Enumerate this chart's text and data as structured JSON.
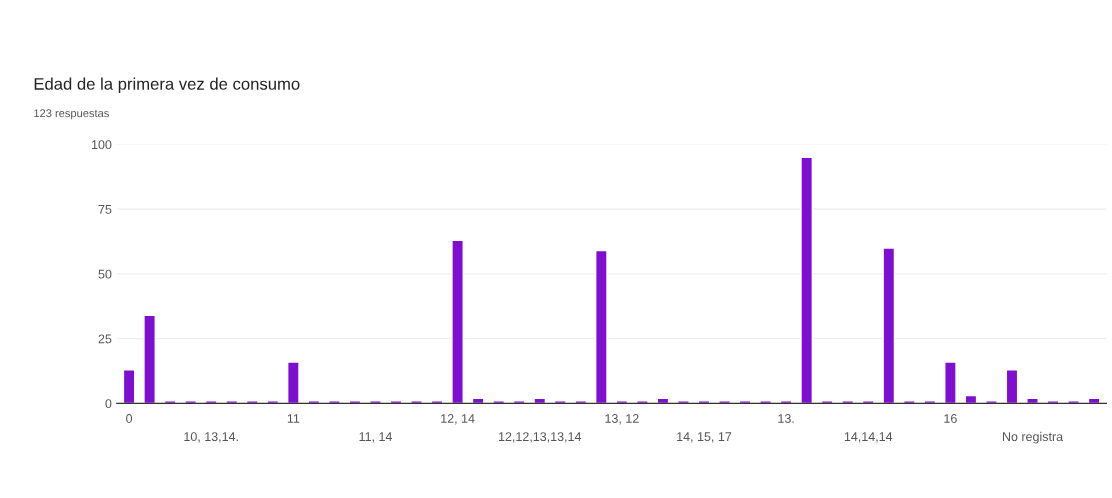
{
  "chart_data": {
    "type": "bar",
    "title": "Edad de la primera vez de consumo",
    "subtitle": "123 respuestas",
    "categories": [
      "0",
      null,
      null,
      null,
      "10, 13,14.",
      null,
      null,
      null,
      "11",
      null,
      null,
      null,
      "11, 14",
      null,
      null,
      null,
      "12, 14",
      null,
      null,
      null,
      "12,12,13,13,14",
      null,
      null,
      null,
      "13, 12",
      null,
      null,
      null,
      "14, 15, 17",
      null,
      null,
      null,
      "13.",
      null,
      null,
      null,
      "14,14,14",
      null,
      null,
      null,
      "16",
      null,
      null,
      null,
      "No registra",
      null,
      null,
      null
    ],
    "values": [
      13,
      34,
      1,
      1,
      1,
      1,
      1,
      1,
      16,
      1,
      1,
      1,
      1,
      1,
      1,
      1,
      63,
      2,
      1,
      1,
      2,
      1,
      1,
      59,
      1,
      1,
      2,
      1,
      1,
      1,
      1,
      1,
      1,
      95,
      1,
      1,
      1,
      60,
      1,
      1,
      16,
      3,
      1,
      13,
      2,
      1,
      1,
      2
    ],
    "color": "#7f0fd0",
    "ylim": [
      0,
      100
    ],
    "yticks": [
      0,
      25,
      50,
      75,
      100
    ],
    "grid": "y"
  }
}
